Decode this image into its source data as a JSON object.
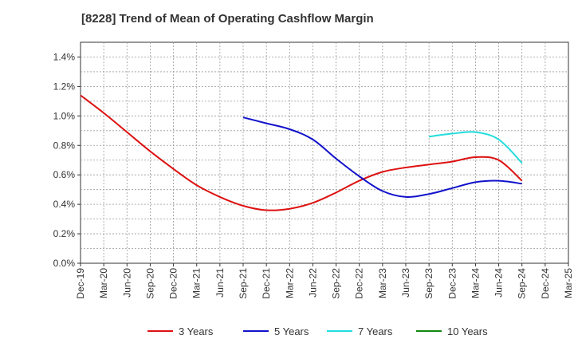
{
  "chart_data": {
    "type": "line",
    "title": "[8228]  Trend of Mean of Operating Cashflow Margin",
    "xlabel": "",
    "ylabel": "",
    "x_tick_labels": [
      "Dec-19",
      "Mar-20",
      "Jun-20",
      "Sep-20",
      "Dec-20",
      "Mar-21",
      "Jun-21",
      "Sep-21",
      "Dec-21",
      "Mar-22",
      "Jun-22",
      "Sep-22",
      "Dec-22",
      "Mar-23",
      "Jun-23",
      "Sep-23",
      "Dec-23",
      "Mar-24",
      "Jun-24",
      "Sep-24",
      "Dec-24",
      "Mar-25"
    ],
    "y_tick_labels": [
      "0.0%",
      "0.2%",
      "0.4%",
      "0.6%",
      "0.8%",
      "1.0%",
      "1.2%",
      "1.4%"
    ],
    "ylim": [
      0,
      1.5
    ],
    "y_unit": "%",
    "grid": true,
    "legend_position": "bottom",
    "series": [
      {
        "name": "3 Years",
        "color": "#dd1111",
        "x": [
          "Dec-19",
          "Mar-20",
          "Jun-20",
          "Sep-20",
          "Dec-20",
          "Mar-21",
          "Jun-21",
          "Sep-21",
          "Dec-21",
          "Mar-22",
          "Jun-22",
          "Sep-22",
          "Dec-22",
          "Mar-23",
          "Jun-23",
          "Sep-23",
          "Dec-23",
          "Mar-24",
          "Jun-24",
          "Sep-24"
        ],
        "values": [
          1.14,
          1.02,
          0.89,
          0.76,
          0.64,
          0.53,
          0.45,
          0.39,
          0.36,
          0.37,
          0.41,
          0.48,
          0.56,
          0.62,
          0.65,
          0.67,
          0.69,
          0.72,
          0.7,
          0.56
        ]
      },
      {
        "name": "5 Years",
        "color": "#1111cc",
        "x": [
          "Sep-21",
          "Dec-21",
          "Mar-22",
          "Jun-22",
          "Sep-22",
          "Dec-22",
          "Mar-23",
          "Jun-23",
          "Sep-23",
          "Dec-23",
          "Mar-24",
          "Jun-24",
          "Sep-24"
        ],
        "values": [
          0.99,
          0.95,
          0.91,
          0.84,
          0.71,
          0.59,
          0.49,
          0.45,
          0.47,
          0.51,
          0.55,
          0.56,
          0.54
        ]
      },
      {
        "name": "7 Years",
        "color": "#22dddd",
        "x": [
          "Sep-23",
          "Dec-23",
          "Mar-24",
          "Jun-24",
          "Sep-24"
        ],
        "values": [
          0.86,
          0.88,
          0.89,
          0.84,
          0.68
        ]
      },
      {
        "name": "10 Years",
        "color": "#118811",
        "x": [],
        "values": []
      }
    ]
  }
}
